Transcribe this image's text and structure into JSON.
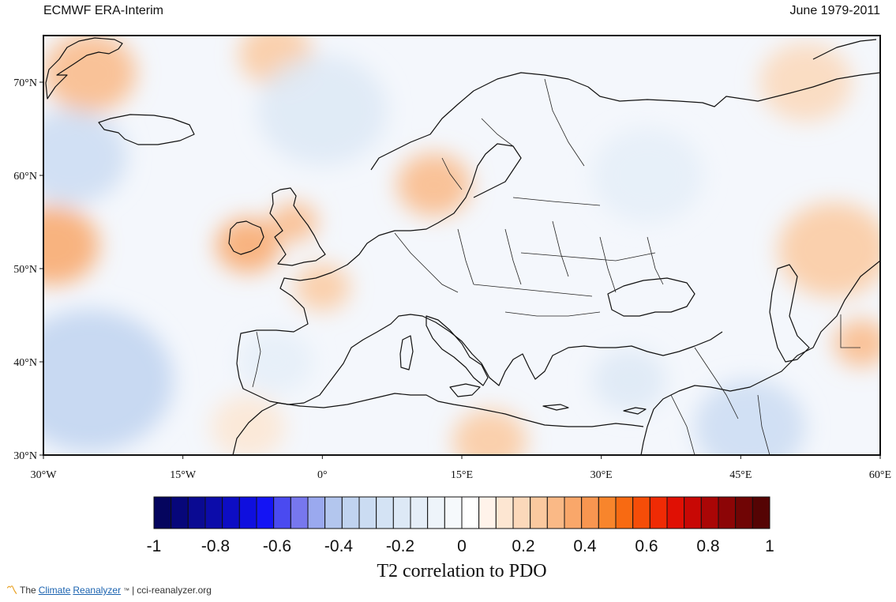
{
  "header": {
    "dataset": "ECMWF ERA-Interim",
    "period": "June 1979-2011"
  },
  "map": {
    "lat_labels": [
      "70°N",
      "60°N",
      "50°N",
      "40°N",
      "30°N"
    ],
    "lat_values": [
      70,
      60,
      50,
      40,
      30
    ],
    "lon_labels": [
      "30°W",
      "15°W",
      "0°",
      "15°E",
      "30°E",
      "45°E",
      "60°E"
    ],
    "lon_values": [
      -30,
      -15,
      0,
      15,
      30,
      45,
      60
    ],
    "lon_range": [
      -30,
      60
    ],
    "lat_range": [
      30,
      75
    ],
    "anomalies": [
      {
        "lon": -29,
        "lat": 52.5,
        "r": 5,
        "value": 0.35
      },
      {
        "lon": -25,
        "lat": 71,
        "r": 5,
        "value": 0.3
      },
      {
        "lon": -27,
        "lat": 62,
        "r": 6,
        "value": -0.3
      },
      {
        "lon": -25,
        "lat": 38,
        "r": 9,
        "value": -0.35
      },
      {
        "lon": -8,
        "lat": 52.5,
        "r": 3.5,
        "value": 0.35
      },
      {
        "lon": -3,
        "lat": 55,
        "r": 2.5,
        "value": 0.3
      },
      {
        "lon": 0,
        "lat": 48,
        "r": 3,
        "value": 0.25
      },
      {
        "lon": 12,
        "lat": 59,
        "r": 4,
        "value": 0.3
      },
      {
        "lon": -5,
        "lat": 73,
        "r": 4,
        "value": 0.25
      },
      {
        "lon": 55,
        "lat": 52,
        "r": 6,
        "value": 0.25
      },
      {
        "lon": 52,
        "lat": 70,
        "r": 5,
        "value": 0.2
      },
      {
        "lon": 18,
        "lat": 31.5,
        "r": 4,
        "value": 0.25
      },
      {
        "lon": -8,
        "lat": 33,
        "r": 4,
        "value": 0.15
      },
      {
        "lon": 46,
        "lat": 33,
        "r": 6,
        "value": -0.3
      },
      {
        "lon": 33,
        "lat": 38,
        "r": 4,
        "value": -0.2
      },
      {
        "lon": 35,
        "lat": 60,
        "r": 6,
        "value": -0.15
      },
      {
        "lon": 0,
        "lat": 67,
        "r": 7,
        "value": -0.2
      },
      {
        "lon": 58,
        "lat": 42,
        "r": 3,
        "value": 0.3
      },
      {
        "lon": -5,
        "lat": 40,
        "r": 4,
        "value": -0.15
      }
    ]
  },
  "colorbar": {
    "tick_labels": [
      "-1",
      "-0.8",
      "-0.6",
      "-0.4",
      "-0.2",
      "0",
      "0.2",
      "0.4",
      "0.6",
      "0.8",
      "1"
    ],
    "tick_values": [
      -1,
      -0.8,
      -0.6,
      -0.4,
      -0.2,
      0,
      0.2,
      0.4,
      0.6,
      0.8,
      1
    ],
    "segment_colors": [
      "#05055e",
      "#07077a",
      "#0a0a92",
      "#0c0caa",
      "#0d0dc4",
      "#0f0fde",
      "#1414f4",
      "#4a4af0",
      "#7777ee",
      "#9aa9ef",
      "#b3c6ee",
      "#c0d3f0",
      "#cbdcf2",
      "#d4e3f4",
      "#dde9f6",
      "#e5eef8",
      "#eef4fa",
      "#f6f9fc",
      "#ffffff",
      "#fff3ea",
      "#fde6d2",
      "#fbd8ba",
      "#fbc99f",
      "#fab986",
      "#f9a76a",
      "#f89650",
      "#f8852c",
      "#f86a12",
      "#f54d08",
      "#f02b05",
      "#e01004",
      "#c80805",
      "#aa0606",
      "#8c0506",
      "#700505",
      "#550404"
    ],
    "title": "T2 correlation to PDO"
  },
  "footer": {
    "brand_prefix": "The ",
    "brand_climate": "Climate",
    "brand_reanalyzer": "Reanalyzer",
    "brand_tm": "™",
    "separator": "|",
    "url": "cci-reanalyzer.org"
  }
}
